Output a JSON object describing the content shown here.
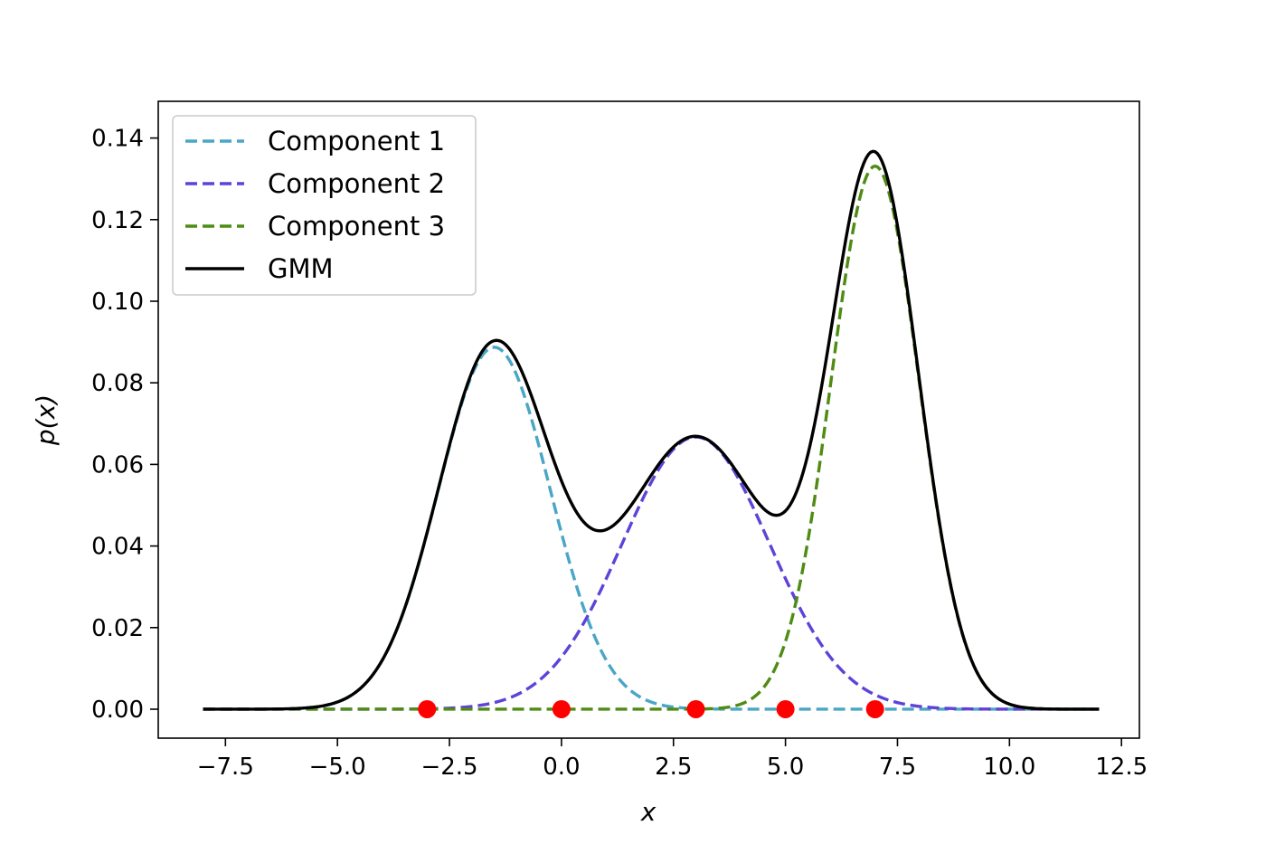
{
  "chart_data": {
    "type": "line",
    "xlabel": "x",
    "ylabel": "p(x)",
    "xlim": [
      -9.0,
      12.9
    ],
    "ylim": [
      -0.0071,
      0.149
    ],
    "x_ticks": [
      -7.5,
      -5.0,
      -2.5,
      0.0,
      2.5,
      5.0,
      7.5,
      10.0,
      12.5
    ],
    "x_tick_labels": [
      "−7.5",
      "−5.0",
      "−2.5",
      "0.0",
      "2.5",
      "5.0",
      "7.5",
      "10.0",
      "12.5"
    ],
    "y_ticks": [
      0.0,
      0.02,
      0.04,
      0.06,
      0.08,
      0.1,
      0.12,
      0.14
    ],
    "y_tick_labels": [
      "0.00",
      "0.02",
      "0.04",
      "0.06",
      "0.08",
      "0.10",
      "0.12",
      "0.14"
    ],
    "x_range": [
      -8.0,
      12.0
    ],
    "grid": false,
    "legend_position": "top-left",
    "series": [
      {
        "name": "Component 1",
        "style": "dashed",
        "color": "#4aa6c6",
        "mean": -1.5,
        "sd": 1.25,
        "weight": 0.278
      },
      {
        "name": "Component 2",
        "style": "dashed",
        "color": "#5f43d9",
        "mean": 3.0,
        "sd": 1.65,
        "weight": 0.276
      },
      {
        "name": "Component 3",
        "style": "dashed",
        "color": "#4e8c13",
        "mean": 7.0,
        "sd": 0.98,
        "weight": 0.327
      },
      {
        "name": "GMM",
        "style": "solid",
        "color": "#000000",
        "sum_of": [
          "Component 1",
          "Component 2",
          "Component 3"
        ]
      }
    ],
    "points": {
      "color": "#ff0000",
      "x": [
        -3.0,
        0.0,
        3.0,
        5.0,
        7.0
      ],
      "y": [
        0.0,
        0.0,
        0.0,
        0.0,
        0.0
      ]
    }
  }
}
